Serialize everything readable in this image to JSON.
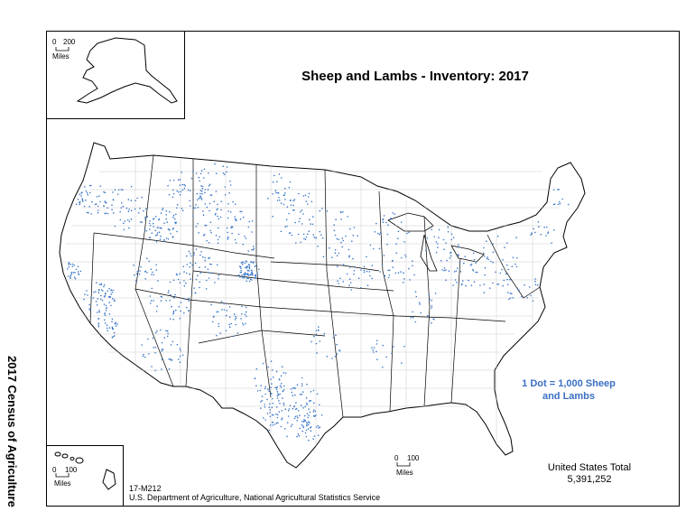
{
  "title": "Sheep and Lambs - Inventory:  2017",
  "side_title": "2017 Census of Agriculture",
  "legend": {
    "line1": "1 Dot = 1,000 Sheep",
    "line2": "and Lambs",
    "dot_color": "#3a76c8"
  },
  "total": {
    "label": "United States Total",
    "value": "5,391,252"
  },
  "footer": {
    "map_id": "17-M212",
    "source": "U.S. Department of Agriculture, National Agricultural Statistics Service"
  },
  "scales": {
    "alaska": {
      "zero": "0",
      "max": "200",
      "unit": "Miles"
    },
    "hawaii": {
      "zero": "0",
      "max": "100",
      "unit": "Miles"
    },
    "conus": {
      "zero": "0",
      "max": "100",
      "unit": "Miles"
    }
  },
  "colors": {
    "border": "#000000",
    "county_lines": "#9a9a9a",
    "dots": "#3a76c8"
  }
}
